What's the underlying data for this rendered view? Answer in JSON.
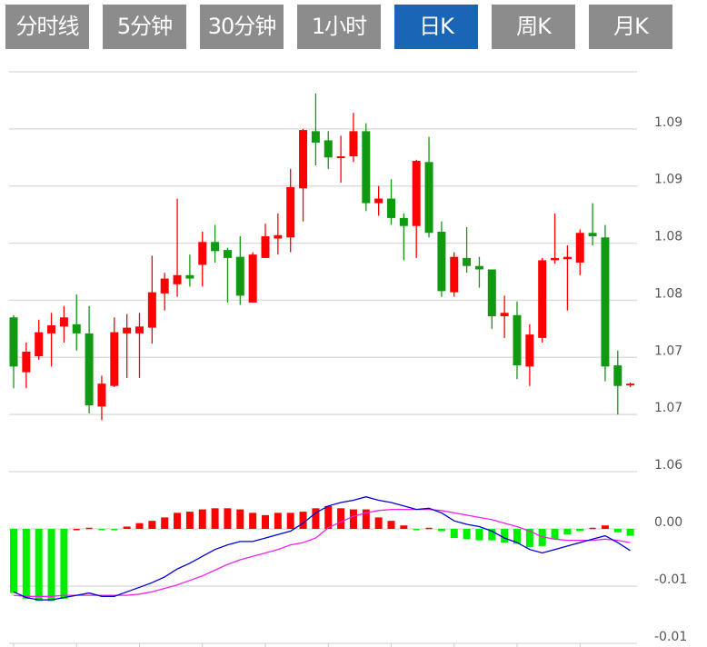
{
  "tabs": [
    {
      "label": "分时线",
      "active": false
    },
    {
      "label": "5分钟",
      "active": false
    },
    {
      "label": "30分钟",
      "active": false
    },
    {
      "label": "1小时",
      "active": false
    },
    {
      "label": "日K",
      "active": true
    },
    {
      "label": "周K",
      "active": false
    },
    {
      "label": "月K",
      "active": false
    }
  ],
  "colors": {
    "tab_bg": "#8c8c8c",
    "tab_active_bg": "#1a65b5",
    "up": "#ff0000",
    "down": "#129912",
    "hist_up": "#ff0000",
    "hist_down": "#00ee00",
    "dif": "#0000cc",
    "dea": "#ee22ee",
    "grid": "#dddddd"
  },
  "chart_data": [
    {
      "type": "candlestick",
      "title": "日K",
      "grid": true,
      "ylim": [
        1.0625,
        1.0975
      ],
      "gridlines": [
        1.0975,
        1.0925,
        1.0875,
        1.0825,
        1.0775,
        1.0725,
        1.0675,
        1.0625
      ],
      "yticks": [
        {
          "value": 1.0925,
          "label": "1.09"
        },
        {
          "value": 1.0875,
          "label": "1.09"
        },
        {
          "value": 1.0825,
          "label": "1.08"
        },
        {
          "value": 1.0775,
          "label": "1.08"
        },
        {
          "value": 1.0725,
          "label": "1.07"
        },
        {
          "value": 1.0675,
          "label": "1.07"
        },
        {
          "value": 1.0625,
          "label": "1.06"
        }
      ],
      "ohlc": [
        [
          1.076,
          1.0762,
          1.0698,
          1.0717
        ],
        [
          1.0712,
          1.0738,
          1.0698,
          1.073
        ],
        [
          1.0726,
          1.0758,
          1.0723,
          1.0747
        ],
        [
          1.0746,
          1.0764,
          1.0717,
          1.0753
        ],
        [
          1.0752,
          1.077,
          1.0738,
          1.076
        ],
        [
          1.0754,
          1.078,
          1.0731,
          1.0746
        ],
        [
          1.0746,
          1.077,
          1.0676,
          1.0683
        ],
        [
          1.0682,
          1.0709,
          1.067,
          1.0702
        ],
        [
          1.07,
          1.076,
          1.0699,
          1.0747
        ],
        [
          1.0746,
          1.0763,
          1.0707,
          1.0751
        ],
        [
          1.0746,
          1.0764,
          1.0707,
          1.0752
        ],
        [
          1.0751,
          1.0814,
          1.0737,
          1.0782
        ],
        [
          1.0781,
          1.0799,
          1.0766,
          1.0794
        ],
        [
          1.0789,
          1.0864,
          1.0778,
          1.0797
        ],
        [
          1.0797,
          1.0815,
          1.0787,
          1.0794
        ],
        [
          1.0806,
          1.0835,
          1.0787,
          1.0826
        ],
        [
          1.0826,
          1.0841,
          1.0808,
          1.0818
        ],
        [
          1.0819,
          1.0821,
          1.0773,
          1.0812
        ],
        [
          1.0813,
          1.0831,
          1.0771,
          1.0779
        ],
        [
          1.0773,
          1.0817,
          1.0773,
          1.0815
        ],
        [
          1.0812,
          1.0842,
          1.0812,
          1.0831
        ],
        [
          1.0829,
          1.0851,
          1.0815,
          1.0832
        ],
        [
          1.083,
          1.089,
          1.0817,
          1.0874
        ],
        [
          1.0873,
          1.0925,
          1.0844,
          1.0924
        ],
        [
          1.0923,
          1.0956,
          1.0893,
          1.0913
        ],
        [
          1.0915,
          1.0923,
          1.089,
          1.09
        ],
        [
          1.09,
          1.0919,
          1.0878,
          1.0901
        ],
        [
          1.0901,
          1.0939,
          1.0896,
          1.0923
        ],
        [
          1.0923,
          1.093,
          1.0853,
          1.086
        ],
        [
          1.086,
          1.0875,
          1.0849,
          1.0864
        ],
        [
          1.0864,
          1.0881,
          1.0841,
          1.0847
        ],
        [
          1.0847,
          1.0851,
          1.081,
          1.084
        ],
        [
          1.084,
          1.0898,
          1.0812,
          1.0897
        ],
        [
          1.0896,
          1.0918,
          1.083,
          1.0834
        ],
        [
          1.0835,
          1.0844,
          1.0778,
          1.0783
        ],
        [
          1.0782,
          1.0817,
          1.0778,
          1.0813
        ],
        [
          1.0812,
          1.0839,
          1.0799,
          1.0805
        ],
        [
          1.0805,
          1.0813,
          1.0786,
          1.0802
        ],
        [
          1.0802,
          1.0802,
          1.075,
          1.0761
        ],
        [
          1.0761,
          1.0779,
          1.0742,
          1.0764
        ],
        [
          1.0762,
          1.0774,
          1.0706,
          1.0718
        ],
        [
          1.0717,
          1.0754,
          1.07,
          1.0745
        ],
        [
          1.0742,
          1.0812,
          1.0738,
          1.081
        ],
        [
          1.081,
          1.0851,
          1.0807,
          1.0812
        ],
        [
          1.0811,
          1.0823,
          1.0766,
          1.0813
        ],
        [
          1.0808,
          1.0837,
          1.0797,
          1.0834
        ],
        [
          1.0834,
          1.086,
          1.0823,
          1.0831
        ],
        [
          1.083,
          1.0841,
          1.0704,
          1.0717
        ],
        [
          1.0718,
          1.0731,
          1.0675,
          1.07
        ],
        [
          1.0701,
          1.0703,
          1.0699,
          1.0702
        ]
      ]
    },
    {
      "type": "macd",
      "ylim": [
        -0.01,
        0.005
      ],
      "gridlines": [
        0,
        -0.005
      ],
      "yticks": [
        {
          "value": 0,
          "label": "0.00"
        },
        {
          "value": -0.005,
          "label": "-0.01"
        },
        {
          "value": -0.01,
          "label": "-0.01"
        }
      ],
      "xtick_every": 5,
      "histogram": [
        -0.0056,
        -0.0061,
        -0.0063,
        -0.0063,
        -0.0061,
        0,
        0.0001,
        -0.0001,
        -0.0001,
        0.0002,
        0.0005,
        0.0007,
        0.001,
        0.0014,
        0.0015,
        0.0017,
        0.0018,
        0.0018,
        0.0017,
        0.0014,
        0.0012,
        0.0014,
        0.0014,
        0.0015,
        0.0018,
        0.002,
        0.0018,
        0.0017,
        0.0017,
        0.001,
        0.0007,
        0.0003,
        -0.0001,
        0.0001,
        -0.0002,
        -0.0008,
        -0.0009,
        -0.001,
        -0.001,
        -0.0012,
        -0.0013,
        -0.0016,
        -0.0015,
        -0.0009,
        -0.0005,
        -0.0002,
        0.0001,
        0.0003,
        -0.0003,
        -0.0006
      ],
      "dif": [
        -0.0055,
        -0.006,
        -0.0062,
        -0.0062,
        -0.006,
        -0.0058,
        -0.0056,
        -0.0059,
        -0.0059,
        -0.0055,
        -0.0051,
        -0.0047,
        -0.0042,
        -0.0035,
        -0.003,
        -0.0024,
        -0.0018,
        -0.0014,
        -0.0011,
        -0.0011,
        -0.0008,
        -0.0005,
        -0.0002,
        0.0005,
        0.0014,
        0.002,
        0.0023,
        0.0025,
        0.0028,
        0.0025,
        0.0023,
        0.002,
        0.0017,
        0.0018,
        0.0014,
        0.0007,
        0.0004,
        0.0002,
        -0.0002,
        -0.0008,
        -0.0012,
        -0.0018,
        -0.0021,
        -0.0018,
        -0.0015,
        -0.0012,
        -0.0009,
        -0.0006,
        -0.0012,
        -0.0019
      ],
      "dea": [
        -0.0058,
        -0.0059,
        -0.0059,
        -0.0059,
        -0.0058,
        -0.0058,
        -0.0058,
        -0.0058,
        -0.0058,
        -0.0058,
        -0.0057,
        -0.0055,
        -0.0052,
        -0.0049,
        -0.0045,
        -0.0041,
        -0.0036,
        -0.0031,
        -0.0027,
        -0.0024,
        -0.0021,
        -0.0018,
        -0.0014,
        -0.0012,
        -0.0008,
        0.0001,
        0.0006,
        0.0011,
        0.0014,
        0.0016,
        0.0017,
        0.0017,
        0.0017,
        0.0017,
        0.0016,
        0.0014,
        0.0012,
        0.001,
        0.0008,
        0.0005,
        0.0002,
        -0.0002,
        -0.0007,
        -0.0009,
        -0.001,
        -0.001,
        -0.001,
        -0.0009,
        -0.001,
        -0.0012
      ]
    }
  ]
}
